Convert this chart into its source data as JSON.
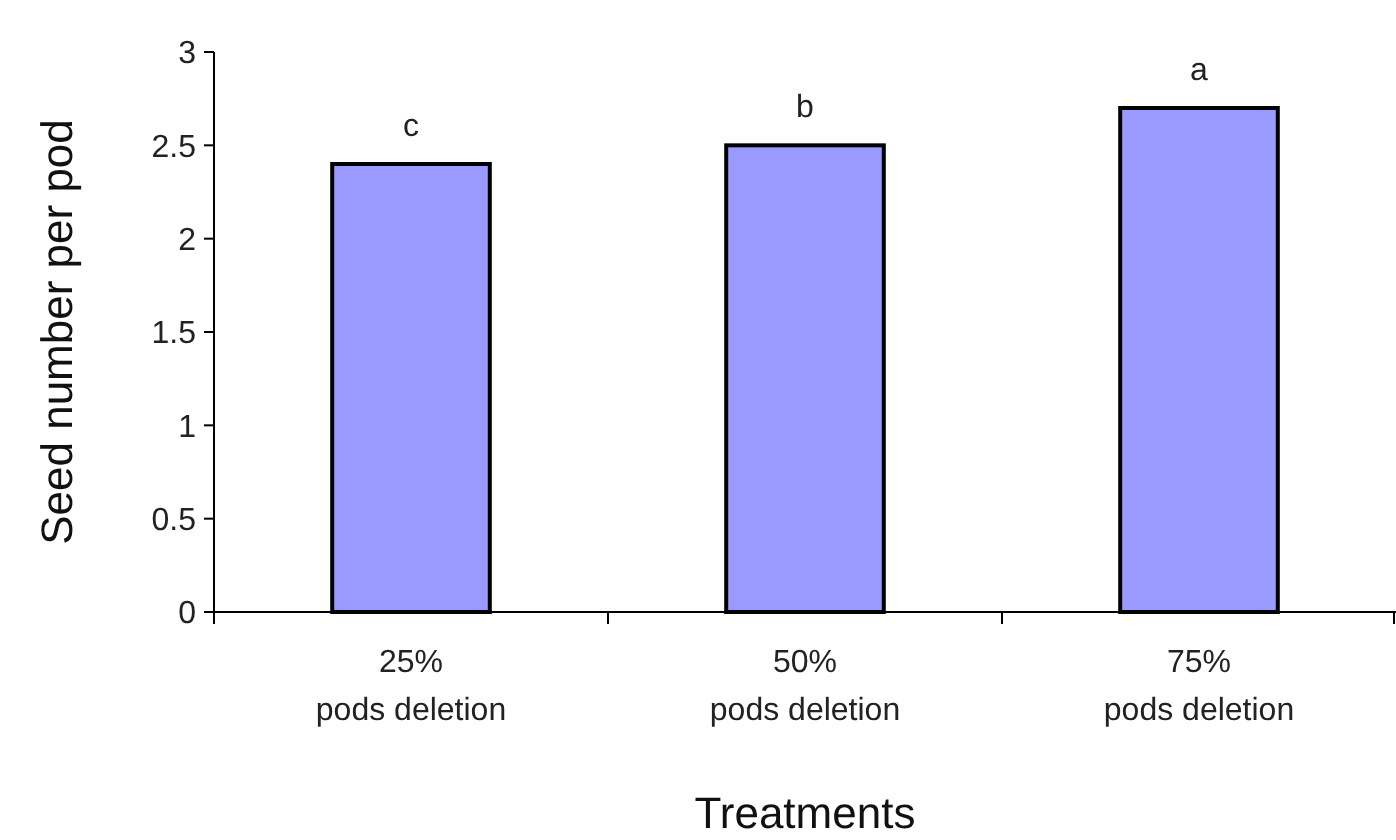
{
  "chart_data": {
    "type": "bar",
    "xlabel": "Treatments",
    "ylabel": "Seed number per pod",
    "categories": [
      "25%\npods deletion",
      "50%\npods deletion",
      "75%\npods deletion"
    ],
    "values": [
      2.4,
      2.5,
      2.7
    ],
    "color": "#9999ff",
    "ylim": [
      0,
      3
    ],
    "yticks": [
      0,
      0.5,
      1,
      1.5,
      2,
      2.5,
      3
    ],
    "grid": false,
    "annotations": [
      {
        "text": "c",
        "x": "25%\npods deletion",
        "y": 2.4
      },
      {
        "text": "b",
        "x": "50%\npods deletion",
        "y": 2.5
      },
      {
        "text": "a",
        "x": "75%\npods deletion",
        "y": 2.7
      }
    ]
  }
}
